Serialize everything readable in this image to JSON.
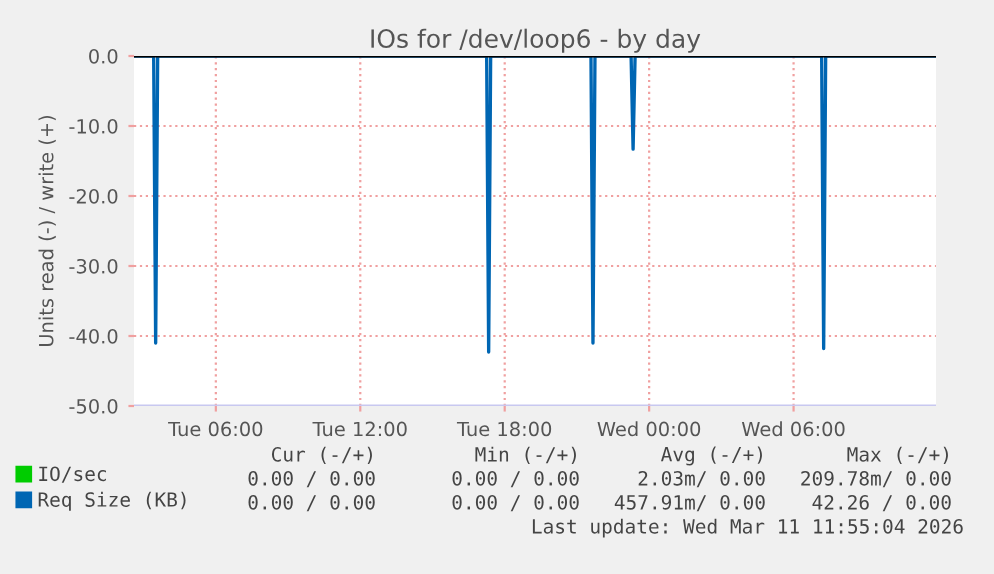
{
  "chart_data": {
    "type": "line",
    "title": "IOs for /dev/loop6 - by day",
    "ylabel": "Units read (-) / write (+)",
    "x": [
      "2026-03-10T02:36",
      "2026-03-10T03:25",
      "2026-03-10T03:30",
      "2026-03-10T03:35",
      "2026-03-10T17:15",
      "2026-03-10T17:20",
      "2026-03-10T17:25",
      "2026-03-10T21:35",
      "2026-03-10T21:40",
      "2026-03-10T21:45",
      "2026-03-10T23:15",
      "2026-03-10T23:20",
      "2026-03-10T23:25",
      "2026-03-11T07:10",
      "2026-03-11T07:15",
      "2026-03-11T07:20",
      "2026-03-11T11:55"
    ],
    "series": [
      {
        "name": "IO/sec",
        "color": "#00cc00",
        "values": [
          null,
          null,
          null,
          null,
          null,
          null,
          null,
          null,
          null,
          null,
          null,
          null,
          null,
          null,
          null,
          null,
          null
        ]
      },
      {
        "name": "Req Size (KB)",
        "color": "#0066b3",
        "values": [
          0,
          0,
          -41,
          0,
          0,
          -42.3,
          0,
          0,
          -41,
          0,
          0,
          -13.3,
          0,
          0,
          -41.8,
          0,
          0
        ]
      }
    ],
    "xlim": [
      "2026-03-10T02:36",
      "2026-03-11T11:55"
    ],
    "xticks": [
      {
        "value": "2026-03-10T06:00",
        "label": "Tue 06:00"
      },
      {
        "value": "2026-03-10T12:00",
        "label": "Tue 12:00"
      },
      {
        "value": "2026-03-10T18:00",
        "label": "Tue 18:00"
      },
      {
        "value": "2026-03-11T00:00",
        "label": "Wed 00:00"
      },
      {
        "value": "2026-03-11T06:00",
        "label": "Wed 06:00"
      }
    ],
    "ylim": [
      -50,
      0
    ],
    "yticks": [
      {
        "value": -50,
        "label": "-50.0"
      },
      {
        "value": -40,
        "label": "-40.0"
      },
      {
        "value": -30,
        "label": "-30.0"
      },
      {
        "value": -20,
        "label": "-20.0"
      },
      {
        "value": -10,
        "label": "-10.0"
      },
      {
        "value": 0,
        "label": "0.0"
      }
    ],
    "ref_lines": [
      {
        "axis": "y",
        "value": 0,
        "color": "#000000"
      }
    ],
    "grid": true,
    "legend": "bottom",
    "marker": "none",
    "line_style": "solid",
    "annotations": [
      "Cur (-/+)",
      "Min (-/+)",
      "Avg (-/+)",
      "Max (-/+)",
      "0.00 / 0.00",
      "0.00 / 0.00",
      "2.03m/ 0.00",
      "209.78m/ 0.00",
      "0.00 / 0.00",
      "0.00 / 0.00",
      "457.91m/ 0.00",
      "42.26 / 0.00",
      "Last update: Wed Mar 11 11:55:04 2026"
    ]
  }
}
